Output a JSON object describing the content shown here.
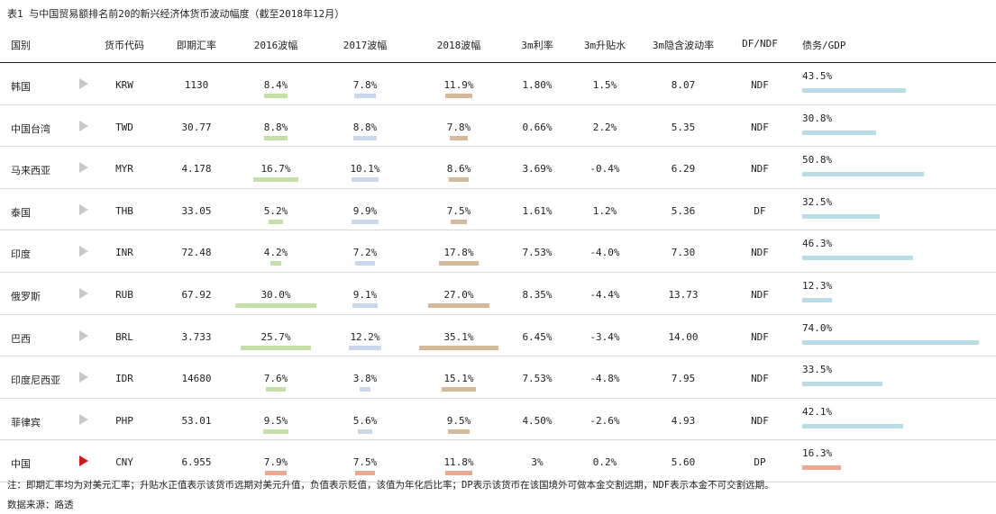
{
  "title": "表1  与中国贸易额排名前20的新兴经济体货币波动幅度（截至2018年12月）",
  "headers": {
    "country": "国别",
    "code": "货币代码",
    "spot": "即期汇率",
    "v2016": "2016波幅",
    "v2017": "2017波幅",
    "v2018": "2018波幅",
    "rate3m": "3m利率",
    "fwd3m": "3m升贴水",
    "impl3m": "3m隐含波动率",
    "dpndf": "DF/NDF",
    "debt": "债务/GDP"
  },
  "rows": [
    {
      "country": "韩国",
      "code": "KRW",
      "spot": "1130",
      "v2016": "8.4%",
      "v2017": "7.8%",
      "v2018": "11.9%",
      "rate3m": "1.80%",
      "fwd3m": "1.5%",
      "impl3m": "8.07",
      "dpndf": "NDF",
      "debt": "43.5%",
      "v2016_n": 8.4,
      "v2017_n": 7.8,
      "v2018_n": 11.9,
      "debt_n": 43.5
    },
    {
      "country": "中国台湾",
      "code": "TWD",
      "spot": "30.77",
      "v2016": "8.8%",
      "v2017": "8.8%",
      "v2018": "7.8%",
      "rate3m": "0.66%",
      "fwd3m": "2.2%",
      "impl3m": "5.35",
      "dpndf": "NDF",
      "debt": "30.8%",
      "v2016_n": 8.8,
      "v2017_n": 8.8,
      "v2018_n": 7.8,
      "debt_n": 30.8
    },
    {
      "country": "马来西亚",
      "code": "MYR",
      "spot": "4.178",
      "v2016": "16.7%",
      "v2017": "10.1%",
      "v2018": "8.6%",
      "rate3m": "3.69%",
      "fwd3m": "-0.4%",
      "impl3m": "6.29",
      "dpndf": "NDF",
      "debt": "50.8%",
      "v2016_n": 16.7,
      "v2017_n": 10.1,
      "v2018_n": 8.6,
      "debt_n": 50.8
    },
    {
      "country": "泰国",
      "code": "THB",
      "spot": "33.05",
      "v2016": "5.2%",
      "v2017": "9.9%",
      "v2018": "7.5%",
      "rate3m": "1.61%",
      "fwd3m": "1.2%",
      "impl3m": "5.36",
      "dpndf": "DF",
      "debt": "32.5%",
      "v2016_n": 5.2,
      "v2017_n": 9.9,
      "v2018_n": 7.5,
      "debt_n": 32.5
    },
    {
      "country": "印度",
      "code": "INR",
      "spot": "72.48",
      "v2016": "4.2%",
      "v2017": "7.2%",
      "v2018": "17.8%",
      "rate3m": "7.53%",
      "fwd3m": "-4.0%",
      "impl3m": "7.30",
      "dpndf": "NDF",
      "debt": "46.3%",
      "v2016_n": 4.2,
      "v2017_n": 7.2,
      "v2018_n": 17.8,
      "debt_n": 46.3
    },
    {
      "country": "俄罗斯",
      "code": "RUB",
      "spot": "67.92",
      "v2016": "30.0%",
      "v2017": "9.1%",
      "v2018": "27.0%",
      "rate3m": "8.35%",
      "fwd3m": "-4.4%",
      "impl3m": "13.73",
      "dpndf": "NDF",
      "debt": "12.3%",
      "v2016_n": 30.0,
      "v2017_n": 9.1,
      "v2018_n": 27.0,
      "debt_n": 12.3
    },
    {
      "country": "巴西",
      "code": "BRL",
      "spot": "3.733",
      "v2016": "25.7%",
      "v2017": "12.2%",
      "v2018": "35.1%",
      "rate3m": "6.45%",
      "fwd3m": "-3.4%",
      "impl3m": "14.00",
      "dpndf": "NDF",
      "debt": "74.0%",
      "v2016_n": 25.7,
      "v2017_n": 12.2,
      "v2018_n": 35.1,
      "debt_n": 74.0
    },
    {
      "country": "印度尼西亚",
      "code": "IDR",
      "spot": "14680",
      "v2016": "7.6%",
      "v2017": "3.8%",
      "v2018": "15.1%",
      "rate3m": "7.53%",
      "fwd3m": "-4.8%",
      "impl3m": "7.95",
      "dpndf": "NDF",
      "debt": "33.5%",
      "v2016_n": 7.6,
      "v2017_n": 3.8,
      "v2018_n": 15.1,
      "debt_n": 33.5
    },
    {
      "country": "菲律宾",
      "code": "PHP",
      "spot": "53.01",
      "v2016": "9.5%",
      "v2017": "5.6%",
      "v2018": "9.5%",
      "rate3m": "4.50%",
      "fwd3m": "-2.6%",
      "impl3m": "4.93",
      "dpndf": "NDF",
      "debt": "42.1%",
      "v2016_n": 9.5,
      "v2017_n": 5.6,
      "v2018_n": 9.5,
      "debt_n": 42.1
    },
    {
      "country": "中国",
      "code": "CNY",
      "spot": "6.955",
      "v2016": "7.9%",
      "v2017": "7.5%",
      "v2018": "11.8%",
      "rate3m": "3%",
      "fwd3m": "0.2%",
      "impl3m": "5.60",
      "dpndf": "DP",
      "debt": "16.3%",
      "v2016_n": 7.9,
      "v2017_n": 7.5,
      "v2018_n": 11.8,
      "debt_n": 16.3,
      "highlight": true
    }
  ],
  "note": "注：即期汇率均为对美元汇率；升贴水正值表示该货币远期对美元升值，负值表示贬值，该值为年化后比率；DP表示该货币在该国境外可做本金交割远期，NDF表示本金不可交割远期。",
  "source": "数据来源：路透",
  "colors": {
    "bar2016": "#c5dfa8",
    "bar2017": "#c9d7ea",
    "bar2018": "#d5b99b",
    "barDebt": "#b9dde7",
    "highlight": "#eba88f",
    "arrowHighlight": "#d9121f"
  }
}
